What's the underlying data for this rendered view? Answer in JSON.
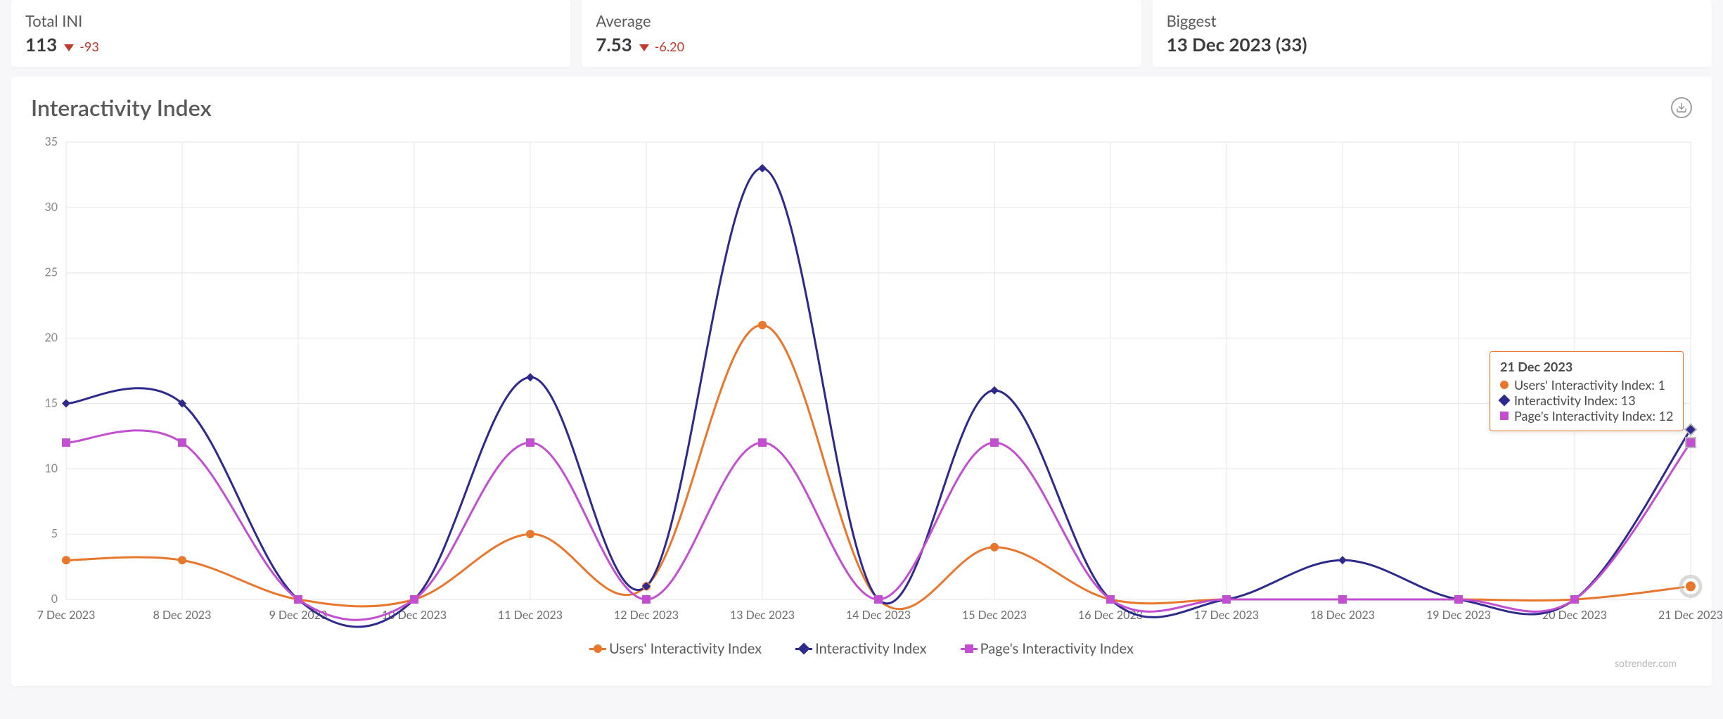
{
  "cards": {
    "total": {
      "label": "Total INI",
      "value": "113",
      "delta": "-93"
    },
    "average": {
      "label": "Average",
      "value": "7.53",
      "delta": "-6.20"
    },
    "biggest": {
      "label": "Biggest",
      "value": "13 Dec 2023 (33)"
    }
  },
  "chart": {
    "title": "Interactivity Index",
    "type": "line",
    "ylim": [
      0,
      35
    ],
    "ytick_step": 5,
    "background_color": "#ffffff",
    "grid_color": "#e6e6e6",
    "axis_label_color": "#888888",
    "x_label_color": "#6a6a6a",
    "title_fontsize": 32,
    "axis_label_fontsize": 16,
    "line_width": 3,
    "marker_size": 6,
    "categories": [
      "7 Dec 2023",
      "8 Dec 2023",
      "9 Dec 2023",
      "10 Dec 2023",
      "11 Dec 2023",
      "12 Dec 2023",
      "13 Dec 2023",
      "14 Dec 2023",
      "15 Dec 2023",
      "16 Dec 2023",
      "17 Dec 2023",
      "18 Dec 2023",
      "19 Dec 2023",
      "20 Dec 2023",
      "21 Dec 2023"
    ],
    "series": [
      {
        "key": "users",
        "name": "Users' Interactivity Index",
        "color": "#e8772e",
        "marker": "circle",
        "values": [
          3,
          3,
          0,
          0,
          5,
          1,
          21,
          0,
          4,
          0,
          0,
          0,
          0,
          0,
          1
        ]
      },
      {
        "key": "index",
        "name": "Interactivity Index",
        "color": "#2e2a8c",
        "marker": "diamond",
        "values": [
          15,
          15,
          0,
          0,
          17,
          1,
          33,
          0,
          16,
          0,
          0,
          3,
          0,
          0,
          13
        ]
      },
      {
        "key": "page",
        "name": "Page's Interactivity Index",
        "color": "#c24fd0",
        "marker": "square",
        "values": [
          12,
          12,
          0,
          0,
          12,
          0,
          12,
          0,
          12,
          0,
          0,
          0,
          0,
          0,
          12
        ]
      }
    ],
    "highlight": {
      "halo_outer": "#bfbfbf",
      "halo_inner": "#e8772e",
      "title": "21 Dec 2023",
      "border_color": "#e8772e",
      "rows": [
        {
          "color": "#e8772e",
          "shape": "circle",
          "label": "Users' Interactivity Index: 1"
        },
        {
          "color": "#2e2a8c",
          "shape": "diamond",
          "label": "Interactivity Index: 13"
        },
        {
          "color": "#c24fd0",
          "shape": "square",
          "label": "Page's Interactivity Index: 12"
        }
      ]
    }
  },
  "footer": {
    "link": "sotrender.com"
  }
}
